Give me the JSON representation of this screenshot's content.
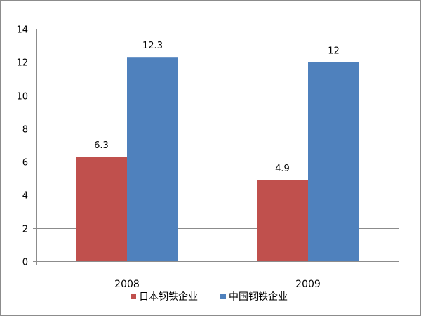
{
  "chart_data": {
    "type": "bar",
    "title": "",
    "xlabel": "",
    "ylabel": "",
    "categories": [
      "2008",
      "2009"
    ],
    "series": [
      {
        "name": "日本钢铁企业",
        "color": "#c0504d",
        "values": [
          6.3,
          4.9
        ],
        "labels": [
          "6.3",
          "4.9"
        ]
      },
      {
        "name": "中国钢铁企业",
        "color": "#4f81bd",
        "values": [
          12.3,
          12
        ],
        "labels": [
          "12.3",
          "12"
        ]
      }
    ],
    "ylim": [
      0,
      14
    ],
    "yticks": [
      0,
      2,
      4,
      6,
      8,
      10,
      12,
      14
    ],
    "grid": true,
    "legend_position": "bottom"
  }
}
